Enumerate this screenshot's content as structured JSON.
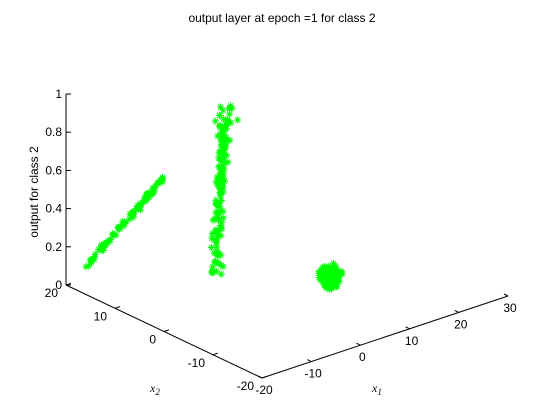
{
  "chart_data": {
    "type": "scatter",
    "title": "output layer at epoch =1 for class 2",
    "xlabel": "x",
    "xlabel_sub": "1",
    "ylabel": "x",
    "ylabel_sub": "2",
    "zlabel": "output for class 2",
    "xlim": [
      -20,
      30
    ],
    "ylim": [
      -20,
      20
    ],
    "zlim": [
      0,
      1
    ],
    "x_ticks": [
      "-20",
      "-10",
      "0",
      "10",
      "20",
      "30"
    ],
    "y_ticks": [
      "-20",
      "-10",
      "0",
      "10",
      "20"
    ],
    "z_ticks": [
      "0",
      "0.2",
      "0.4",
      "0.6",
      "0.8",
      "1"
    ],
    "marker": "asterisk",
    "marker_color": "#00ff00",
    "grid": false,
    "clusters": [
      {
        "x_range": [
          -18,
          -10
        ],
        "y_range": [
          10,
          18
        ],
        "z_range": [
          0.1,
          0.6
        ],
        "shape": "diagonal-band",
        "points": 90
      },
      {
        "x_range": [
          -2,
          3
        ],
        "y_range": [
          4,
          16
        ],
        "z_range": [
          0.0,
          0.9
        ],
        "shape": "vertical-band",
        "points": 160
      },
      {
        "x_range": [
          8,
          14
        ],
        "y_range": [
          -6,
          0
        ],
        "z_range": [
          0.0,
          0.1
        ],
        "shape": "blob",
        "points": 140
      }
    ]
  }
}
